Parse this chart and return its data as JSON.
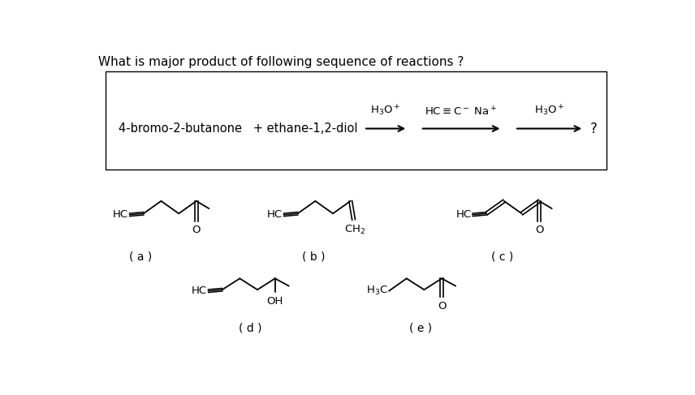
{
  "title": "What is major product of following sequence of reactions ?",
  "title_fontsize": 11,
  "background": "#ffffff",
  "label_a": "( a )",
  "label_b": "( b )",
  "label_c": "( c )",
  "label_d": "( d )",
  "label_e": "( e )"
}
